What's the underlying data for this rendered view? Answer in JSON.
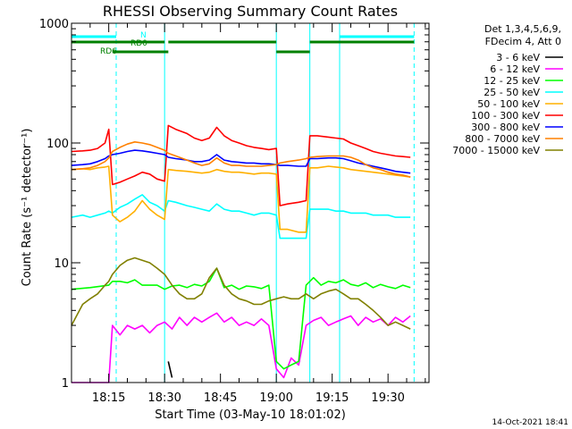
{
  "chart_data": {
    "type": "line",
    "title": "RHESSI Observing Summary Count Rates",
    "xlabel": "Start Time (03-May-10 18:01:02)",
    "ylabel": "Count Rate (s⁻¹ detector⁻¹)",
    "yscale": "log",
    "ylim": [
      1,
      1000
    ],
    "xlim_minutes": [
      5,
      101
    ],
    "y_tick_labels": [
      "1",
      "10",
      "100",
      "1000"
    ],
    "x_tick_labels": [
      "18:15",
      "18:30",
      "18:45",
      "19:00",
      "19:15",
      "19:30"
    ],
    "x_tick_minutes": [
      15,
      30,
      45,
      60,
      75,
      90
    ],
    "legend": {
      "header": [
        "Det 1,3,4,5,6,9,",
        "FDecim 4, Att 0"
      ],
      "placement": "right"
    },
    "series": [
      {
        "name": "3 - 6 keV",
        "color": "#000000",
        "x": [
          5,
          30,
          31,
          32,
          33,
          101
        ],
        "y": [
          null,
          null,
          1.5,
          1.1,
          null,
          null
        ]
      },
      {
        "name": "6 - 12 keV",
        "color": "#ff00ff",
        "x": [
          5,
          15,
          16,
          18,
          20,
          22,
          24,
          26,
          28,
          30,
          32,
          34,
          36,
          38,
          40,
          42,
          44,
          46,
          48,
          50,
          52,
          54,
          56,
          58,
          60,
          62,
          64,
          66,
          68,
          70,
          72,
          74,
          76,
          78,
          80,
          82,
          84,
          86,
          88,
          90,
          92,
          94,
          96
        ],
        "y": [
          1,
          1,
          3,
          2.5,
          3,
          2.8,
          3,
          2.6,
          3,
          3.2,
          2.8,
          3.5,
          3,
          3.5,
          3.2,
          3.5,
          3.8,
          3.2,
          3.5,
          3,
          3.2,
          3,
          3.4,
          3,
          1.3,
          1.1,
          1.6,
          1.4,
          3,
          3.3,
          3.5,
          3,
          3.2,
          3.4,
          3.6,
          3,
          3.5,
          3.2,
          3.4,
          3,
          3.5,
          3.2,
          3.6
        ]
      },
      {
        "name": "12 - 25 keV",
        "color": "#00ff00",
        "x": [
          5,
          10,
          15,
          16,
          18,
          20,
          22,
          24,
          26,
          28,
          30,
          32,
          34,
          36,
          38,
          40,
          42,
          44,
          46,
          48,
          50,
          52,
          54,
          56,
          58,
          60,
          62,
          64,
          66,
          68,
          70,
          72,
          74,
          76,
          78,
          80,
          82,
          84,
          86,
          88,
          90,
          92,
          94,
          96
        ],
        "y": [
          6,
          6.2,
          6.5,
          7,
          7,
          6.8,
          7.2,
          6.5,
          6.5,
          6.5,
          6,
          6.4,
          6.5,
          6.2,
          6.6,
          6.4,
          7,
          9,
          6.2,
          6.5,
          6,
          6.4,
          6.3,
          6.1,
          6.5,
          1.5,
          1.3,
          1.4,
          1.5,
          6.5,
          7.5,
          6.5,
          7,
          6.8,
          7.2,
          6.6,
          6.4,
          6.8,
          6.2,
          6.6,
          6.3,
          6.1,
          6.5,
          6.2
        ]
      },
      {
        "name": "25 - 50 keV",
        "color": "#00ffff",
        "x": [
          5,
          8,
          10,
          12,
          14,
          15,
          16,
          18,
          20,
          22,
          24,
          26,
          28,
          30,
          31,
          33,
          36,
          38,
          40,
          42,
          44,
          46,
          48,
          50,
          52,
          54,
          56,
          58,
          60,
          61,
          63,
          66,
          68,
          69,
          71,
          74,
          76,
          78,
          80,
          82,
          84,
          86,
          88,
          90,
          92,
          94,
          96
        ],
        "y": [
          24,
          25,
          24,
          25,
          26,
          27,
          26,
          29,
          31,
          34,
          37,
          32,
          30,
          27,
          33,
          32,
          30,
          29,
          28,
          27,
          31,
          28,
          27,
          27,
          26,
          25,
          26,
          26,
          25,
          16,
          16,
          16,
          16,
          28,
          28,
          28,
          27,
          27,
          26,
          26,
          26,
          25,
          25,
          25,
          24,
          24,
          24
        ]
      },
      {
        "name": "50 - 100 keV",
        "color": "#ffb000",
        "x": [
          5,
          8,
          10,
          12,
          14,
          15,
          16,
          18,
          20,
          22,
          24,
          26,
          28,
          30,
          31,
          33,
          36,
          38,
          40,
          42,
          44,
          46,
          48,
          50,
          52,
          54,
          56,
          58,
          60,
          61,
          63,
          66,
          68,
          69,
          71,
          74,
          76,
          78,
          80,
          82,
          84,
          86,
          88,
          90,
          92,
          94,
          96
        ],
        "y": [
          60,
          61,
          60,
          62,
          63,
          64,
          25,
          22,
          24,
          27,
          33,
          28,
          25,
          23,
          60,
          59,
          58,
          57,
          56,
          57,
          60,
          58,
          57,
          57,
          56,
          55,
          56,
          56,
          55,
          19,
          19,
          18,
          18,
          62,
          62,
          64,
          63,
          62,
          60,
          59,
          58,
          57,
          56,
          55,
          54,
          53,
          52
        ]
      },
      {
        "name": "100 - 300 keV",
        "color": "#ff0000",
        "x": [
          5,
          8,
          10,
          12,
          14,
          15,
          16,
          18,
          20,
          22,
          24,
          26,
          28,
          30,
          31,
          33,
          36,
          38,
          40,
          42,
          44,
          46,
          48,
          50,
          52,
          54,
          56,
          58,
          60,
          61,
          63,
          66,
          68,
          69,
          71,
          74,
          76,
          78,
          80,
          82,
          84,
          86,
          88,
          90,
          92,
          94,
          96
        ],
        "y": [
          85,
          86,
          87,
          90,
          100,
          130,
          45,
          47,
          50,
          53,
          57,
          55,
          50,
          48,
          140,
          130,
          120,
          110,
          105,
          110,
          135,
          115,
          105,
          100,
          95,
          92,
          90,
          88,
          90,
          30,
          31,
          32,
          33,
          115,
          115,
          112,
          110,
          108,
          100,
          95,
          90,
          85,
          82,
          80,
          78,
          77,
          76
        ]
      },
      {
        "name": "300 - 800 keV",
        "color": "#0000ff",
        "x": [
          5,
          8,
          10,
          12,
          14,
          15,
          16,
          18,
          20,
          22,
          24,
          26,
          28,
          30,
          31,
          33,
          36,
          38,
          40,
          42,
          44,
          46,
          48,
          50,
          52,
          54,
          56,
          58,
          60,
          61,
          63,
          66,
          68,
          69,
          71,
          74,
          76,
          78,
          80,
          82,
          84,
          86,
          88,
          90,
          92,
          94,
          96
        ],
        "y": [
          65,
          66,
          67,
          70,
          74,
          78,
          80,
          82,
          85,
          87,
          86,
          84,
          82,
          80,
          76,
          74,
          72,
          70,
          70,
          72,
          80,
          72,
          70,
          69,
          68,
          68,
          67,
          67,
          66,
          65,
          65,
          64,
          64,
          74,
          74,
          75,
          75,
          74,
          71,
          68,
          66,
          64,
          62,
          60,
          58,
          57,
          56
        ]
      },
      {
        "name": "800 - 7000 keV",
        "color": "#ff8000",
        "x": [
          5,
          8,
          10,
          12,
          14,
          15,
          16,
          18,
          20,
          22,
          24,
          26,
          28,
          30,
          31,
          33,
          36,
          38,
          40,
          42,
          44,
          46,
          48,
          50,
          52,
          54,
          56,
          58,
          60,
          61,
          63,
          66,
          68,
          69,
          71,
          74,
          76,
          78,
          80,
          82,
          84,
          86,
          88,
          90,
          92,
          94,
          96
        ],
        "y": [
          60,
          61,
          62,
          65,
          70,
          75,
          85,
          92,
          98,
          102,
          100,
          97,
          92,
          87,
          82,
          78,
          72,
          68,
          65,
          67,
          75,
          68,
          65,
          65,
          64,
          64,
          64,
          65,
          66,
          68,
          70,
          72,
          74,
          76,
          77,
          78,
          78,
          78,
          76,
          72,
          66,
          62,
          60,
          57,
          55,
          54,
          52
        ]
      },
      {
        "name": "7000 - 15000 keV",
        "color": "#808000",
        "x": [
          5,
          8,
          10,
          12,
          14,
          15,
          16,
          18,
          20,
          22,
          24,
          26,
          28,
          30,
          32,
          34,
          36,
          38,
          40,
          42,
          44,
          46,
          48,
          50,
          52,
          54,
          56,
          58,
          60,
          62,
          64,
          66,
          68,
          70,
          72,
          74,
          76,
          78,
          80,
          82,
          84,
          86,
          88,
          90,
          92,
          94,
          96
        ],
        "y": [
          3,
          4.5,
          5,
          5.5,
          6.5,
          7,
          8,
          9.5,
          10.5,
          11,
          10.5,
          10,
          9,
          8,
          6.5,
          5.5,
          5,
          5,
          5.5,
          7.5,
          9,
          6.5,
          5.5,
          5,
          4.8,
          4.5,
          4.5,
          4.8,
          5,
          5.2,
          5,
          5,
          5.5,
          5,
          5.5,
          5.8,
          6,
          5.5,
          5,
          5,
          4.5,
          4,
          3.5,
          3,
          3.2,
          3,
          2.8
        ]
      }
    ],
    "vertical_lines_solid_minutes": [
      5,
      30,
      60,
      69,
      77
    ],
    "vertical_lines_dashed_minutes": [
      17,
      97
    ],
    "state_bars": [
      {
        "label": "N",
        "color": "#00ffff",
        "segments": [
          [
            5,
            17
          ],
          [
            77,
            97
          ]
        ]
      },
      {
        "label": "RD0",
        "color": "#008000",
        "segments": [
          [
            5,
            30
          ],
          [
            31,
            60
          ],
          [
            69,
            97
          ]
        ]
      },
      {
        "label": "RD6",
        "color": "#008000",
        "segments": [
          [
            16,
            31
          ],
          [
            60,
            69
          ]
        ]
      }
    ],
    "footer_timestamp": "14-Oct-2021 18:41"
  }
}
